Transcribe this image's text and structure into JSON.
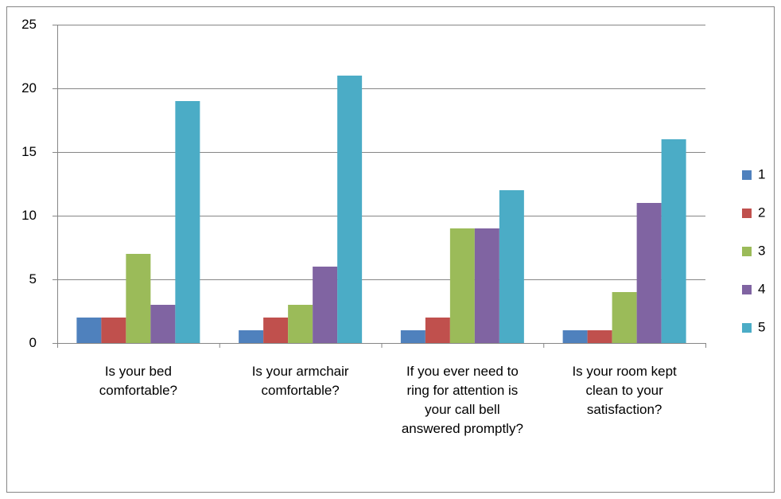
{
  "chart_data": {
    "type": "bar",
    "categories": [
      "Is your bed comfortable?",
      "Is your armchair comfortable?",
      "If you ever need to ring for attention is your call bell answered promptly?",
      "Is your room kept clean to your satisfaction?"
    ],
    "series": [
      {
        "name": "1",
        "color": "#4f81bd",
        "values": [
          2,
          1,
          1,
          1
        ]
      },
      {
        "name": "2",
        "color": "#c0504d",
        "values": [
          2,
          2,
          2,
          1
        ]
      },
      {
        "name": "3",
        "color": "#9bbb59",
        "values": [
          7,
          3,
          9,
          4
        ]
      },
      {
        "name": "4",
        "color": "#8064a2",
        "values": [
          3,
          6,
          9,
          11
        ]
      },
      {
        "name": "5",
        "color": "#4bacc6",
        "values": [
          19,
          21,
          12,
          16
        ]
      }
    ],
    "ylim": [
      0,
      25
    ],
    "yticks": [
      0,
      5,
      10,
      15,
      20,
      25
    ],
    "grid": true,
    "legend": "right"
  }
}
